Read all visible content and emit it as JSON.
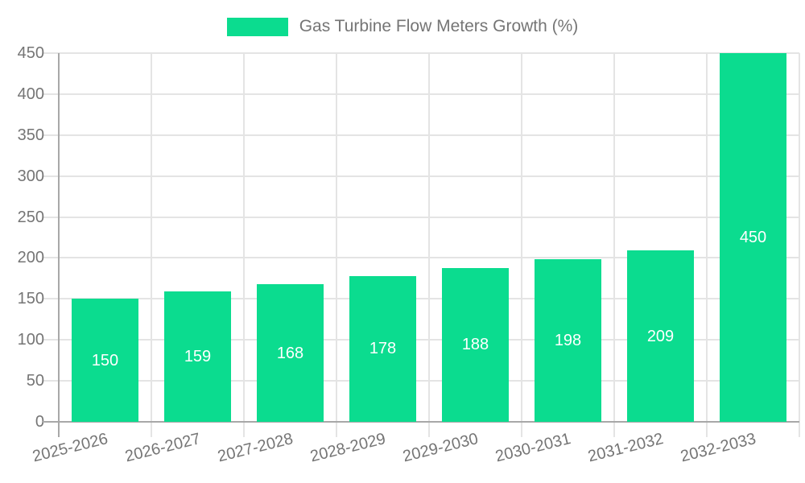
{
  "legend": {
    "label": "Gas Turbine Flow Meters Growth (%)"
  },
  "chart_data": {
    "type": "bar",
    "title": "Gas Turbine Flow Meters Growth (%)",
    "categories": [
      "2025-2026",
      "2026-2027",
      "2027-2028",
      "2028-2029",
      "2029-2030",
      "2030-2031",
      "2031-2032",
      "2032-2033"
    ],
    "values": [
      150,
      159,
      168,
      178,
      188,
      198,
      209,
      450
    ],
    "yticks": [
      0,
      50,
      100,
      150,
      200,
      250,
      300,
      350,
      400,
      450
    ],
    "ylim": [
      0,
      450
    ],
    "xlabel": "",
    "ylabel": "",
    "grid": true,
    "legend_position": "top",
    "value_labels": "inside-center"
  },
  "colors": {
    "bar": "#0bdc8f",
    "value_label": "#ffffff",
    "axis_text": "#757575",
    "grid_line": "#e4e4e4",
    "axis_line": "#a8a8a8",
    "background": "#ffffff"
  }
}
